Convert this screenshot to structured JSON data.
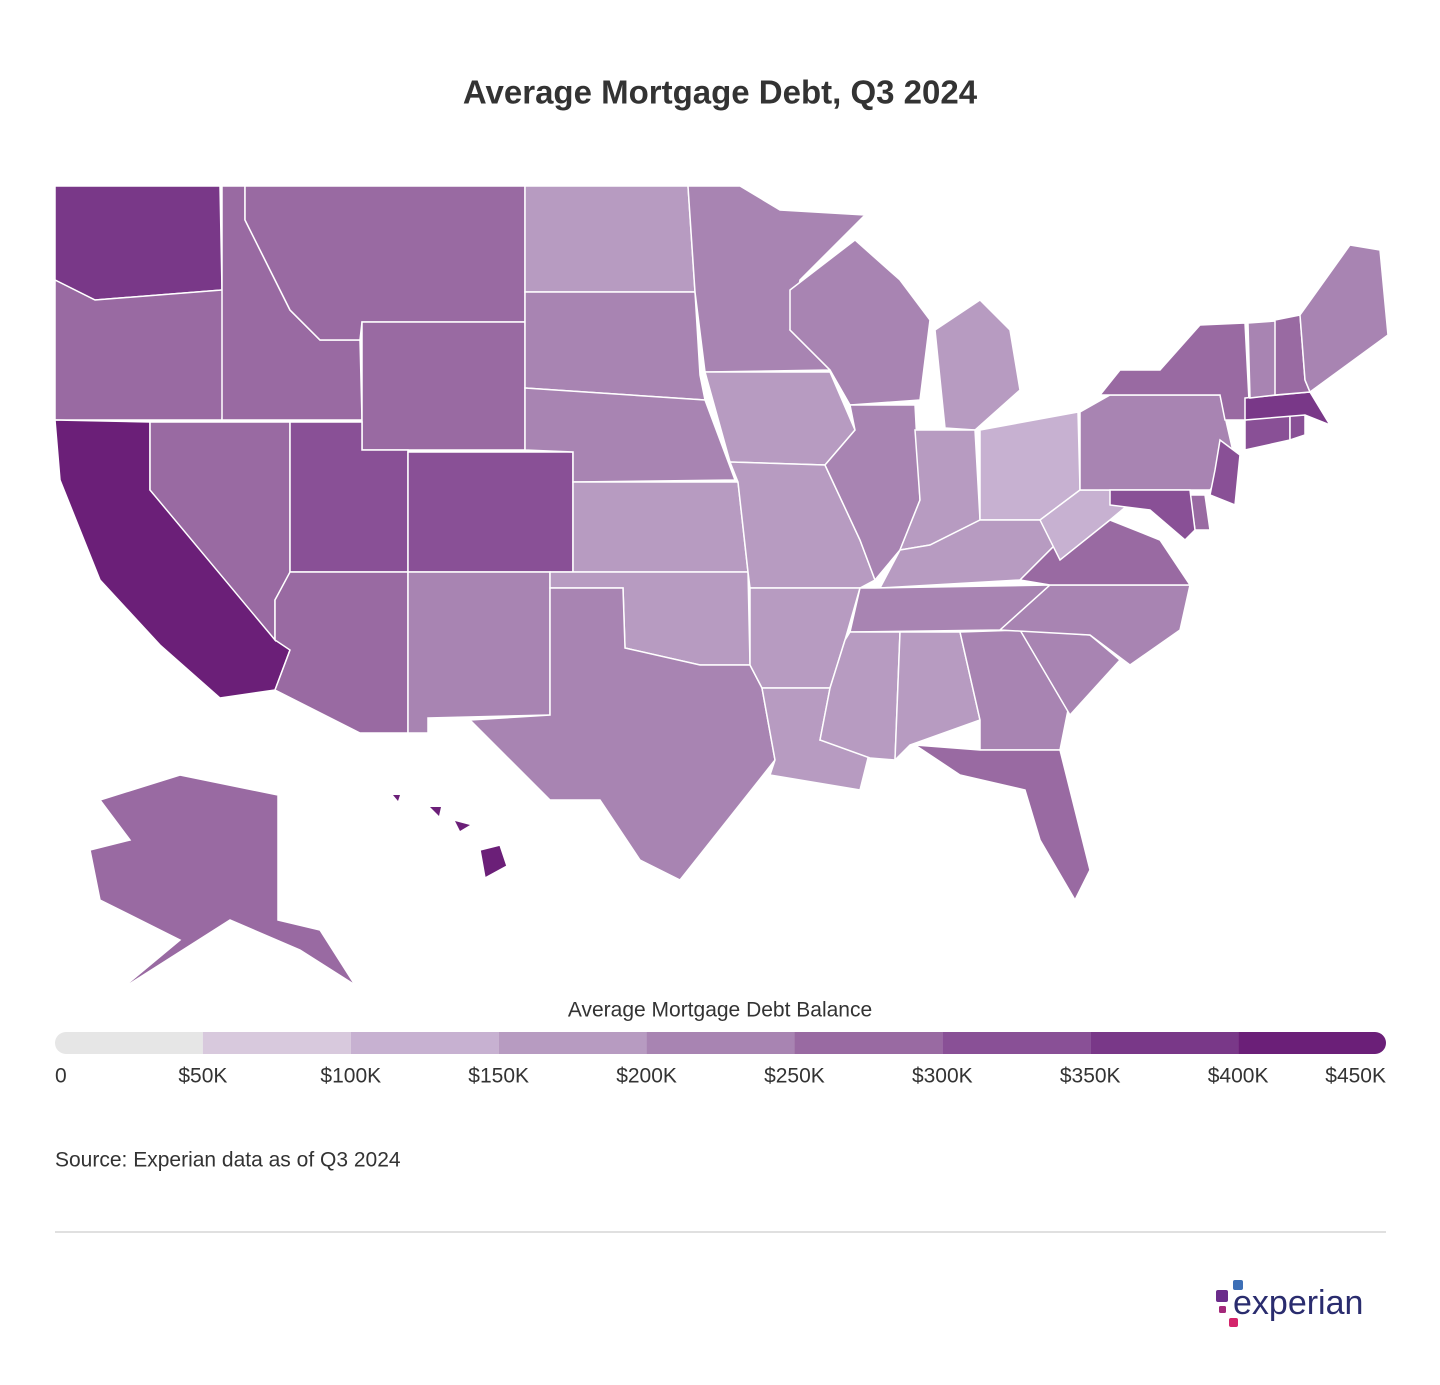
{
  "chart_data": {
    "type": "choropleth",
    "title": "Average Mortgage Debt, Q3 2024",
    "legend_title": "Average Mortgage Debt Balance",
    "values": [
      370000,
      280000,
      430000,
      280000,
      280000,
      260000,
      250000,
      330000,
      330000,
      280000,
      200000,
      190000,
      200000,
      200000,
      190000,
      180000,
      240000,
      240000,
      180000,
      190000,
      170000,
      170000,
      210000,
      210000,
      180000,
      180000,
      140000,
      170000,
      240000,
      150000,
      190000,
      240000,
      270000,
      240000,
      240000,
      290000,
      130000,
      200000,
      290000,
      310000,
      260000,
      300000,
      300000,
      300000,
      350000,
      220000,
      260000,
      210000,
      270000,
      420000
    ],
    "colors": [
      "#e6e6e6",
      "#d8c9dd",
      "#c7b1d1",
      "#b79bc1",
      "#a884b2",
      "#996aa2",
      "#895096",
      "#793888",
      "#6b1f78"
    ],
    "lim": [
      0,
      450000
    ],
    "ticks": [
      0,
      {
        "value": 50000,
        "label": "$50K"
      },
      {
        "value": 100000,
        "label": "$100K"
      },
      {
        "value": 150000,
        "label": "$150K"
      },
      {
        "value": 200000,
        "label": "$200K"
      },
      {
        "value": 250000,
        "label": "$250K"
      },
      {
        "value": 300000,
        "label": "$300K"
      },
      {
        "value": 350000,
        "label": "$350K"
      },
      {
        "value": 400000,
        "label": "$400K"
      },
      {
        "value": 450000,
        "label": "$450K"
      }
    ],
    "source": "Source: Experian data as of Q3 2024"
  },
  "logo": "experian"
}
